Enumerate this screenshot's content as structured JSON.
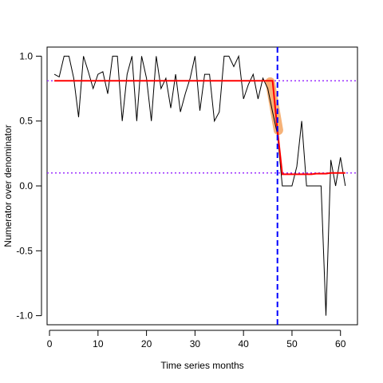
{
  "chart_data": {
    "type": "line",
    "xlabel": "Time series months",
    "ylabel": "Numerator over denominator",
    "xlim": [
      -0.5,
      63.5
    ],
    "ylim": [
      -1.07,
      1.07
    ],
    "xticks": [
      0,
      10,
      20,
      30,
      40,
      50,
      60
    ],
    "yticks": [
      -1.0,
      -0.5,
      0.0,
      0.5,
      1.0
    ],
    "grid": false,
    "legend": "none",
    "colors": {
      "series": "#000000",
      "fit": "#ff0000",
      "change_highlight": "#f4a460",
      "breakpoint": "#0000ff",
      "reference": "#9b30ff"
    },
    "series": [
      {
        "x": [
          1,
          2,
          3,
          4,
          5,
          6,
          7,
          8,
          9,
          10,
          11,
          12,
          13,
          14,
          15,
          16,
          17,
          18,
          19,
          20,
          21,
          22,
          23,
          24,
          25,
          26,
          27,
          28,
          29,
          30,
          31,
          32,
          33,
          34,
          35,
          36,
          37,
          38,
          39,
          40,
          41,
          42,
          43,
          44,
          45,
          46,
          47,
          48,
          49,
          50,
          51,
          52,
          53,
          54,
          55,
          56,
          57,
          58,
          59,
          60,
          61
        ],
        "values": [
          0.86,
          0.84,
          1.0,
          1.0,
          0.83,
          0.53,
          1.0,
          0.88,
          0.75,
          0.86,
          0.88,
          0.71,
          1.0,
          1.0,
          0.5,
          0.86,
          1.0,
          0.5,
          1.0,
          0.83,
          0.5,
          1.0,
          0.75,
          0.83,
          0.6,
          0.86,
          0.57,
          0.71,
          0.83,
          1.0,
          0.58,
          0.86,
          0.86,
          0.5,
          0.57,
          1.0,
          1.0,
          0.92,
          1.0,
          0.67,
          0.78,
          0.86,
          0.67,
          0.83,
          0.75,
          0.57,
          0.4,
          0.0,
          0.0,
          0.0,
          0.15,
          0.5,
          0.0,
          0.0,
          0.0,
          0.0,
          -1.0,
          0.2,
          0.0,
          0.22,
          0.0
        ]
      }
    ],
    "fit": {
      "x": [
        1,
        2,
        3,
        4,
        5,
        6,
        7,
        8,
        9,
        10,
        11,
        12,
        13,
        14,
        15,
        16,
        17,
        18,
        19,
        20,
        21,
        22,
        23,
        24,
        25,
        26,
        27,
        28,
        29,
        30,
        31,
        32,
        33,
        34,
        35,
        36,
        37,
        38,
        39,
        40,
        41,
        42,
        43,
        44,
        45,
        46,
        47,
        48,
        49,
        50,
        51,
        52,
        53,
        54,
        55,
        56,
        57,
        58,
        59,
        60,
        61
      ],
      "values": [
        0.81,
        0.81,
        0.81,
        0.81,
        0.81,
        0.81,
        0.81,
        0.81,
        0.81,
        0.81,
        0.81,
        0.81,
        0.81,
        0.81,
        0.81,
        0.81,
        0.81,
        0.81,
        0.81,
        0.81,
        0.81,
        0.81,
        0.81,
        0.81,
        0.81,
        0.81,
        0.81,
        0.81,
        0.81,
        0.81,
        0.81,
        0.81,
        0.81,
        0.81,
        0.81,
        0.81,
        0.81,
        0.81,
        0.81,
        0.81,
        0.81,
        0.81,
        0.81,
        0.81,
        0.81,
        0.81,
        0.43,
        0.09,
        0.09,
        0.09,
        0.09,
        0.09,
        0.09,
        0.09,
        0.095,
        0.095,
        0.095,
        0.1,
        0.1,
        0.1,
        0.1
      ]
    },
    "change_highlight": {
      "x": [
        45.5,
        47.2
      ],
      "values": [
        0.8,
        0.43
      ]
    },
    "breakpoint_x": 47,
    "reference_lines_y": [
      0.81,
      0.1
    ]
  }
}
